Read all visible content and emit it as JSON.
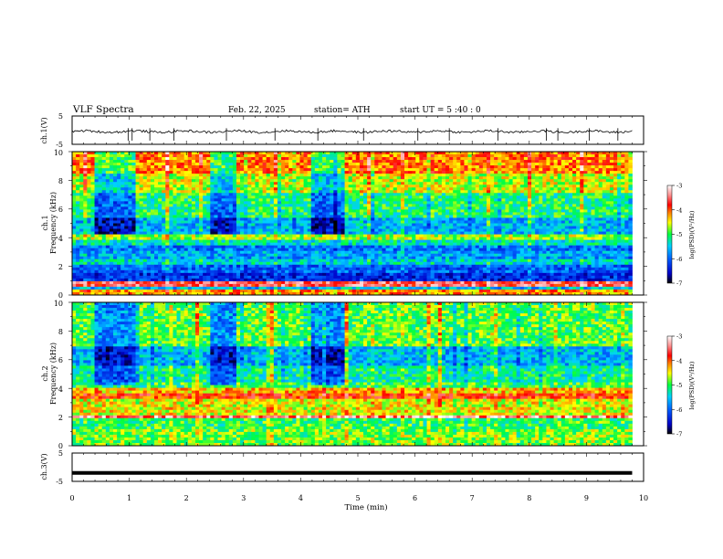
{
  "header": {
    "title": "VLF  Spectra",
    "date": "Feb. 22, 2025",
    "station": "station= ATH",
    "start": "start  UT  =    5  :40 : 0"
  },
  "chart_data": [
    {
      "type": "line",
      "panel": "ch1-waveform",
      "ylabel": "ch.1(V)",
      "ylim": [
        -5,
        5
      ],
      "yticks": [
        "5",
        "-5"
      ],
      "xlim": [
        0,
        10
      ],
      "baseline_v": -0.5,
      "noise_amplitude_v": 0.8,
      "spikes_at_min": [
        0.98,
        1.05,
        1.36,
        1.78,
        2.7,
        3.55,
        4.3,
        5.1,
        6.05,
        6.6,
        7.45,
        8.3,
        8.5,
        9.05,
        9.55
      ]
    },
    {
      "type": "heatmap",
      "panel": "ch1-spectrogram",
      "ylabel": "ch.1\nFrequency (kHz)",
      "ylim": [
        0,
        10
      ],
      "yticks": [
        "0",
        "2",
        "4",
        "6",
        "8",
        "10"
      ],
      "xlim": [
        0,
        9.8
      ],
      "colorbar": {
        "label": "log(PSD)(V²/Hz)",
        "range": [
          -7,
          -3
        ],
        "ticks": [
          "-3",
          "-4",
          "-5",
          "-6",
          "-7"
        ]
      },
      "bands": [
        {
          "f": [
            0,
            0.3
          ],
          "v": -4.2
        },
        {
          "f": [
            0.3,
            0.6
          ],
          "v": -5.6
        },
        {
          "f": [
            0.6,
            1.0
          ],
          "v": -3.6
        },
        {
          "f": [
            1.0,
            1.6
          ],
          "v": -6.3
        },
        {
          "f": [
            1.6,
            2.1
          ],
          "v": -6.0
        },
        {
          "f": [
            2.1,
            2.5
          ],
          "v": -5.4
        },
        {
          "f": [
            2.5,
            3.0
          ],
          "v": -5.7
        },
        {
          "f": [
            3.0,
            3.4
          ],
          "v": -5.9
        },
        {
          "f": [
            3.4,
            3.8
          ],
          "v": -5.3
        },
        {
          "f": [
            3.8,
            4.3
          ],
          "v": -4.7
        },
        {
          "f": [
            4.3,
            5.4
          ],
          "v": -5.6
        },
        {
          "f": [
            5.4,
            7.2
          ],
          "v": -5.1
        },
        {
          "f": [
            7.2,
            8.4
          ],
          "v": -4.6
        },
        {
          "f": [
            8.4,
            10
          ],
          "v": -4.1
        }
      ],
      "quiet_intervals_min": [
        [
          0.4,
          1.1
        ],
        [
          2.4,
          2.9
        ],
        [
          4.2,
          4.8
        ]
      ]
    },
    {
      "type": "heatmap",
      "panel": "ch2-spectrogram",
      "ylabel": "ch.2\nFrequency (kHz)",
      "ylim": [
        0,
        10
      ],
      "yticks": [
        "0",
        "2",
        "4",
        "6",
        "8",
        "10"
      ],
      "xlim": [
        0,
        9.8
      ],
      "colorbar": {
        "label": "log(PSD)(V²/Hz)",
        "range": [
          -7,
          -3
        ],
        "ticks": [
          "-3",
          "-4",
          "-5",
          "-6",
          "-7"
        ]
      },
      "bands": [
        {
          "f": [
            0,
            1.2
          ],
          "v": -4.8
        },
        {
          "f": [
            1.2,
            2.0
          ],
          "v": -5.0
        },
        {
          "f": [
            2.0,
            2.2
          ],
          "v": -3.4
        },
        {
          "f": [
            2.2,
            3.2
          ],
          "v": -4.5
        },
        {
          "f": [
            3.2,
            3.6
          ],
          "v": -3.9
        },
        {
          "f": [
            3.6,
            4.0
          ],
          "v": -4.3
        },
        {
          "f": [
            4.0,
            4.5
          ],
          "v": -5.0
        },
        {
          "f": [
            4.5,
            5.5
          ],
          "v": -5.2
        },
        {
          "f": [
            5.5,
            7.0
          ],
          "v": -5.6
        },
        {
          "f": [
            7.0,
            10
          ],
          "v": -4.9
        }
      ],
      "quiet_intervals_min": [
        [
          0.4,
          1.1
        ],
        [
          2.4,
          2.9
        ],
        [
          4.2,
          4.8
        ]
      ]
    },
    {
      "type": "line",
      "panel": "ch3-waveform",
      "ylabel": "ch.3(V)",
      "ylim": [
        -5,
        5
      ],
      "yticks": [
        "5",
        "-5"
      ],
      "xlim": [
        0,
        10
      ],
      "xticks": [
        "0",
        "1",
        "2",
        "3",
        "4",
        "5",
        "6",
        "7",
        "8",
        "9",
        "10"
      ],
      "xlabel": "Time  (min)",
      "baseline_v": -2.0,
      "end_min": 9.8
    }
  ]
}
